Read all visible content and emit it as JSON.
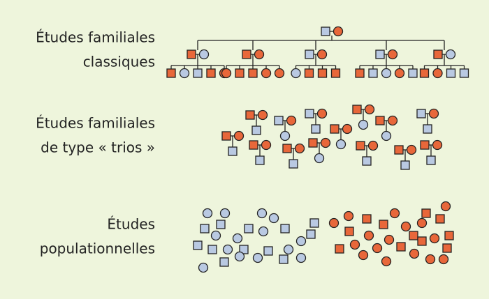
{
  "rows": [
    {
      "label": [
        "Études familiales",
        "classiques"
      ]
    },
    {
      "label": [
        "Études familiales",
        "de type « trios »"
      ]
    },
    {
      "label": [
        "Études",
        "populationnelles"
      ]
    }
  ]
}
